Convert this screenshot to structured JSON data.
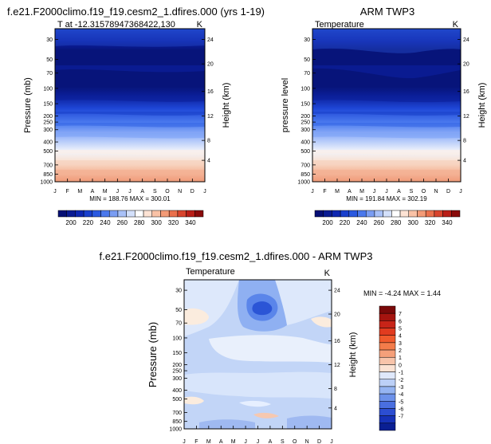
{
  "chart_data": [
    {
      "type": "contour",
      "title": "f.e21.F2000climo.f19_f19.cesm2_1.dfires.000 (yrs 1-19)",
      "left_label": "T at -12.31578947368422,130",
      "right_label": "K",
      "ylabel": "Pressure (mb)",
      "y2label": "Height (km)",
      "x": [
        "J",
        "F",
        "M",
        "A",
        "M",
        "J",
        "J",
        "A",
        "S",
        "O",
        "N",
        "D",
        "J"
      ],
      "pressure_ticks": [
        "30",
        "50",
        "70",
        "100",
        "150",
        "200",
        "250",
        "300",
        "400",
        "500",
        "700",
        "850",
        "1000"
      ],
      "height_ticks": [
        "24",
        "20",
        "16",
        "12",
        "8",
        "4"
      ],
      "summary": "MIN = 188.76 MAX = 300.01",
      "colorbar_labels": [
        "200",
        "220",
        "240",
        "260",
        "280",
        "300",
        "320",
        "340"
      ]
    },
    {
      "type": "contour",
      "title": "ARM TWP3",
      "left_label": "Temperature",
      "right_label": "K",
      "ylabel": "pressure level",
      "y2label": "Height (km)",
      "x": [
        "J",
        "F",
        "M",
        "A",
        "M",
        "J",
        "J",
        "A",
        "S",
        "O",
        "N",
        "D",
        "J"
      ],
      "pressure_ticks": [
        "30",
        "50",
        "70",
        "100",
        "150",
        "200",
        "250",
        "300",
        "400",
        "500",
        "700",
        "850",
        "1000"
      ],
      "height_ticks": [
        "24",
        "20",
        "16",
        "12",
        "8",
        "4"
      ],
      "summary": "MIN = 191.84 MAX = 302.19",
      "colorbar_labels": [
        "200",
        "220",
        "240",
        "260",
        "280",
        "300",
        "320",
        "340"
      ]
    },
    {
      "type": "contour",
      "title": "f.e21.F2000climo.f19_f19.cesm2_1.dfires.000 - ARM TWP3",
      "left_label": "Temperature",
      "right_label": "K",
      "ylabel": "Pressure (mb)",
      "y2label": "Height (km)",
      "x": [
        "J",
        "F",
        "M",
        "A",
        "M",
        "J",
        "J",
        "A",
        "S",
        "O",
        "N",
        "D",
        "J"
      ],
      "pressure_ticks": [
        "30",
        "50",
        "70",
        "100",
        "150",
        "200",
        "250",
        "300",
        "400",
        "500",
        "700",
        "850",
        "1000"
      ],
      "height_ticks": [
        "24",
        "20",
        "16",
        "12",
        "8",
        "4"
      ],
      "summary": "MIN = -4.24 MAX =  1.44",
      "colorbar_labels": [
        "7",
        "6",
        "5",
        "4",
        "3",
        "2",
        "1",
        "0",
        "-1",
        "-2",
        "-3",
        "-4",
        "-5",
        "-6",
        "-7"
      ]
    }
  ]
}
